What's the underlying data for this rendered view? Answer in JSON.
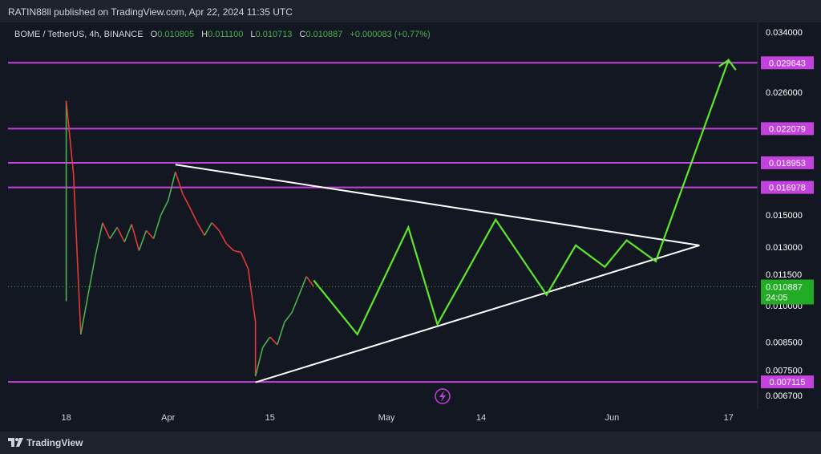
{
  "header": {
    "publisher": "RATIN88ll published on TradingView.com, Apr 22, 2024 11:35 UTC"
  },
  "footer": {
    "brand": "TradingView"
  },
  "legend": {
    "symbol": "BOME / TetherUS, 4h, BINANCE",
    "o_label": "O",
    "o_value": "0.010805",
    "h_label": "H",
    "h_value": "0.011100",
    "l_label": "L",
    "l_value": "0.010713",
    "c_label": "C",
    "c_value": "0.010887",
    "change": "+0.000083 (+0.77%)"
  },
  "colors": {
    "background": "#131722",
    "up": "#4caf50",
    "down": "#e53935",
    "level_line": "#c342dd",
    "projection": "#5ee82b",
    "triangle": "#ffffff",
    "price_tag": "#22ab24",
    "axis_text": "#ffffff"
  },
  "chart_data": {
    "type": "line",
    "title": "BOME / TetherUS, 4h, BINANCE",
    "y_axis": {
      "scale": "log",
      "ylim": [
        0.0063,
        0.0355
      ],
      "tick_labels": [
        "0.034000",
        "0.026000",
        "0.015000",
        "0.013000",
        "0.011500",
        "0.010000",
        "0.008500",
        "0.007500",
        "0.006700"
      ],
      "tick_values": [
        0.034,
        0.026,
        0.015,
        0.013,
        0.0115,
        0.01,
        0.0085,
        0.0075,
        0.0067
      ]
    },
    "x_axis": {
      "xlim": [
        "2024-03-10",
        "2024-06-21"
      ],
      "tick_labels": [
        "18",
        "Apr",
        "15",
        "May",
        "14",
        "Jun",
        "17"
      ],
      "tick_dates": [
        "2024-03-18",
        "2024-04-01",
        "2024-04-15",
        "2024-05-01",
        "2024-05-14",
        "2024-06-01",
        "2024-06-17"
      ]
    },
    "horizontal_levels": [
      {
        "label": "0.029643",
        "value": 0.029643
      },
      {
        "label": "0.022079",
        "value": 0.022079
      },
      {
        "label": "0.018953",
        "value": 0.018953
      },
      {
        "label": "0.016978",
        "value": 0.016978
      },
      {
        "label": "0.007115",
        "value": 0.007115
      }
    ],
    "current_price": {
      "label": "0.010887",
      "value": 0.010887,
      "countdown": "24:05"
    },
    "triangle_upper": [
      [
        "2024-04-02",
        0.0188
      ],
      [
        "2024-06-13",
        0.0131
      ]
    ],
    "triangle_lower": [
      [
        "2024-04-13",
        0.0071
      ],
      [
        "2024-06-13",
        0.0131
      ]
    ],
    "projection": [
      [
        "2024-04-21",
        0.0112
      ],
      [
        "2024-04-27",
        0.0088
      ],
      [
        "2024-05-04",
        0.0142
      ],
      [
        "2024-05-08",
        0.0092
      ],
      [
        "2024-05-16",
        0.0147
      ],
      [
        "2024-05-23",
        0.0105
      ],
      [
        "2024-05-27",
        0.0131
      ],
      [
        "2024-05-31",
        0.0119
      ],
      [
        "2024-06-03",
        0.0134
      ],
      [
        "2024-06-07",
        0.0122
      ],
      [
        "2024-06-17",
        0.03
      ],
      [
        "2024-06-18",
        0.0287
      ]
    ],
    "price_series": [
      [
        "2024-03-18",
        0.0102
      ],
      [
        "2024-03-18",
        0.025
      ],
      [
        "2024-03-19",
        0.018
      ],
      [
        "2024-03-20",
        0.0088
      ],
      [
        "2024-03-21",
        0.0105
      ],
      [
        "2024-03-22",
        0.0125
      ],
      [
        "2024-03-23",
        0.0145
      ],
      [
        "2024-03-24",
        0.0135
      ],
      [
        "2024-03-25",
        0.0142
      ],
      [
        "2024-03-26",
        0.0133
      ],
      [
        "2024-03-27",
        0.0144
      ],
      [
        "2024-03-28",
        0.0128
      ],
      [
        "2024-03-29",
        0.014
      ],
      [
        "2024-03-30",
        0.0135
      ],
      [
        "2024-03-31",
        0.015
      ],
      [
        "2024-04-01",
        0.016
      ],
      [
        "2024-04-02",
        0.0182
      ],
      [
        "2024-04-03",
        0.0165
      ],
      [
        "2024-04-04",
        0.0155
      ],
      [
        "2024-04-05",
        0.0145
      ],
      [
        "2024-04-06",
        0.0137
      ],
      [
        "2024-04-07",
        0.0145
      ],
      [
        "2024-04-08",
        0.014
      ],
      [
        "2024-04-09",
        0.0132
      ],
      [
        "2024-04-10",
        0.0128
      ],
      [
        "2024-04-11",
        0.0127
      ],
      [
        "2024-04-12",
        0.0118
      ],
      [
        "2024-04-13",
        0.0093
      ],
      [
        "2024-04-13",
        0.0073
      ],
      [
        "2024-04-14",
        0.0083
      ],
      [
        "2024-04-15",
        0.0087
      ],
      [
        "2024-04-16",
        0.0084
      ],
      [
        "2024-04-17",
        0.0093
      ],
      [
        "2024-04-18",
        0.0097
      ],
      [
        "2024-04-19",
        0.0105
      ],
      [
        "2024-04-20",
        0.0114
      ],
      [
        "2024-04-21",
        0.0109
      ]
    ]
  }
}
